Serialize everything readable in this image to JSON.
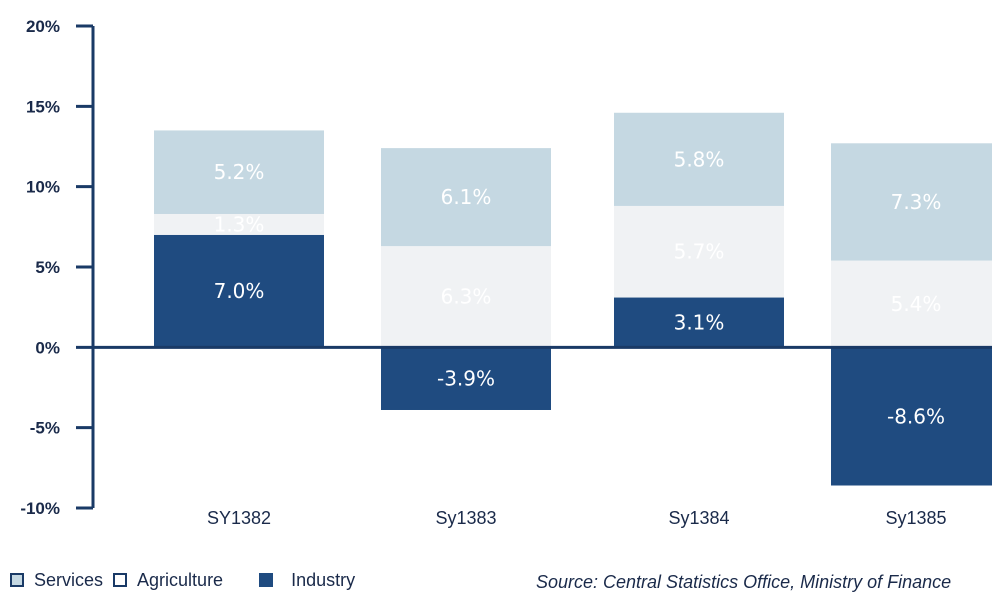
{
  "chart_data": {
    "type": "bar",
    "stacked": true,
    "categories": [
      "SY1382",
      "Sy1383",
      "Sy1384",
      "Sy1385"
    ],
    "series": [
      {
        "name": "Industry",
        "values": [
          7.0,
          -3.9,
          3.1,
          -8.6
        ],
        "labels": [
          "7.0%",
          "-3.9%",
          "3.1%",
          "-8.6%"
        ],
        "color": "#1f4b80",
        "label_color": "#ffffff"
      },
      {
        "name": "Agriculture",
        "values": [
          1.3,
          6.3,
          5.7,
          5.4
        ],
        "labels": [
          "1.3%",
          "6.3%",
          "5.7%",
          "5.4%"
        ],
        "color": "#f0f2f4",
        "label_color": "#ffffff"
      },
      {
        "name": "Services",
        "values": [
          5.2,
          6.1,
          5.8,
          7.3
        ],
        "labels": [
          "5.2%",
          "6.1%",
          "5.8%",
          "7.3%"
        ],
        "color": "#c5d8e2",
        "label_color": "#ffffff"
      }
    ],
    "ylim": [
      -10,
      20
    ],
    "yticks": [
      20,
      15,
      10,
      5,
      0,
      -5,
      -10
    ],
    "ytick_labels": [
      "20%",
      "15%",
      "10%",
      "5%",
      "0%",
      "-5%",
      "-10%"
    ],
    "grid": false,
    "legend_position": "bottom-left",
    "axis_color": "#1a3a66"
  },
  "legend": {
    "items": [
      {
        "label": "Services",
        "color": "#c5d8e2",
        "border": "#1a3a66"
      },
      {
        "label": "Agriculture",
        "color": "#ffffff",
        "border": "#1a3a66"
      },
      {
        "label": "Industry",
        "color": "#1f4b80",
        "border": "#1f4b80"
      }
    ]
  },
  "source": "Source: Central Statistics Office, Ministry of Finance"
}
